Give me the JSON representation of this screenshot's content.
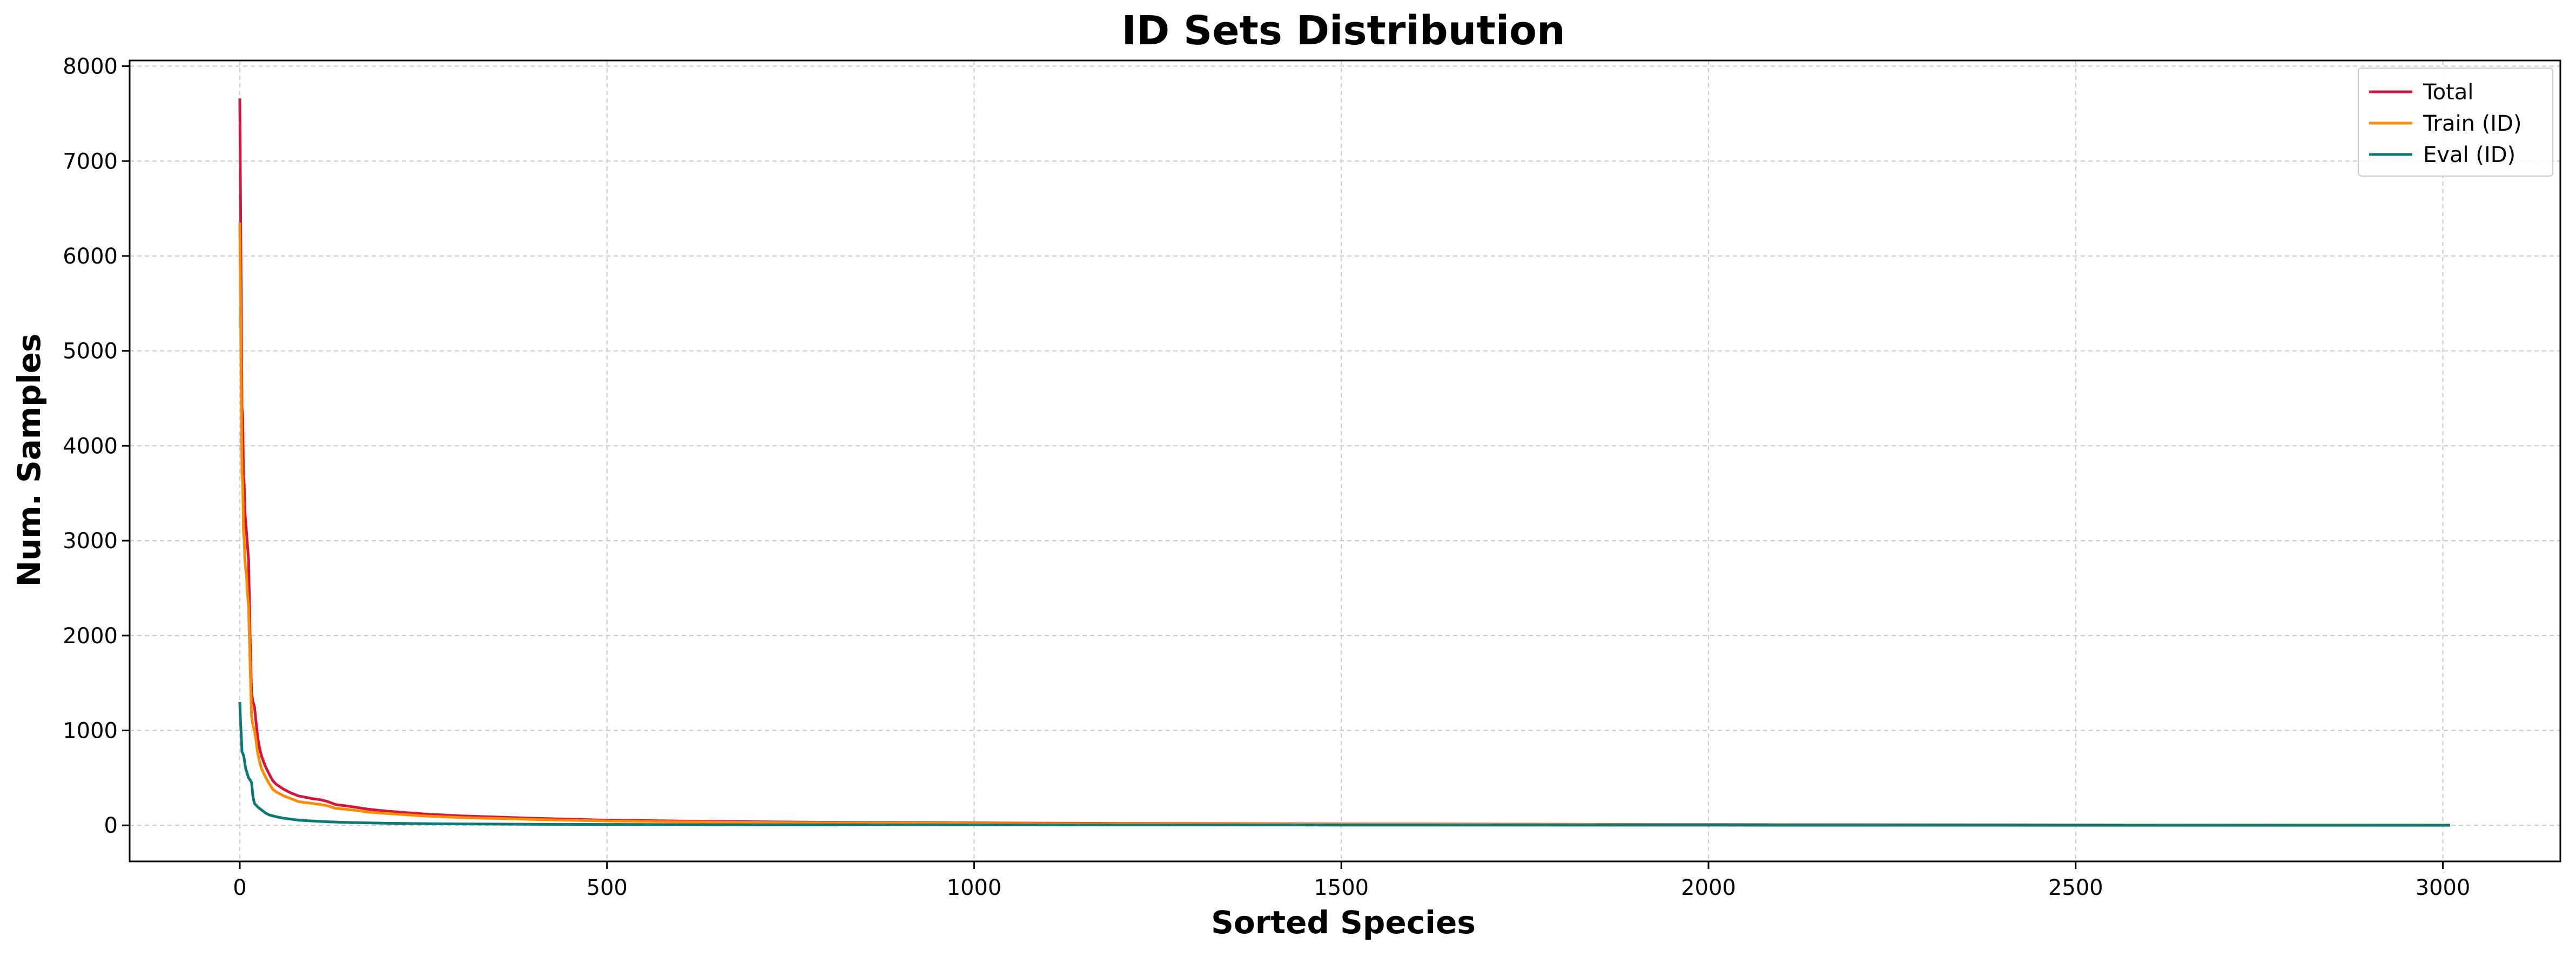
{
  "chart_data": {
    "type": "line",
    "title": "ID Sets Distribution",
    "xlabel": "Sorted Species",
    "ylabel": "Num. Samples",
    "xlim": [
      -150,
      3160
    ],
    "ylim": [
      -380,
      8060
    ],
    "xticks": [
      0,
      500,
      1000,
      1500,
      2000,
      2500,
      3000
    ],
    "xtick_labels": [
      "0",
      "500",
      "1000",
      "1500",
      "2000",
      "2500",
      "3000"
    ],
    "yticks": [
      0,
      1000,
      2000,
      3000,
      4000,
      5000,
      6000,
      7000,
      8000
    ],
    "ytick_labels": [
      "0",
      "1000",
      "2000",
      "3000",
      "4000",
      "5000",
      "6000",
      "7000",
      "8000"
    ],
    "grid": true,
    "legend_position": "top-right",
    "series": [
      {
        "name": "Total",
        "color": "#d7153a",
        "x": [
          0,
          1,
          2,
          3,
          4,
          5,
          6,
          7,
          8,
          9,
          10,
          12,
          14,
          16,
          18,
          20,
          22,
          24,
          26,
          28,
          30,
          35,
          40,
          45,
          50,
          60,
          70,
          80,
          90,
          100,
          110,
          120,
          130,
          150,
          175,
          200,
          250,
          300,
          400,
          500,
          600,
          700,
          800,
          1000,
          1200,
          1500,
          1800,
          2000,
          2500,
          3010
        ],
        "values": [
          7660,
          6600,
          5500,
          4400,
          4300,
          3700,
          3600,
          3300,
          3200,
          3100,
          3000,
          2800,
          2000,
          1400,
          1300,
          1250,
          1100,
          950,
          850,
          780,
          720,
          620,
          540,
          470,
          430,
          380,
          340,
          310,
          295,
          280,
          270,
          250,
          220,
          200,
          170,
          150,
          120,
          100,
          75,
          55,
          45,
          38,
          32,
          25,
          20,
          15,
          11,
          8,
          5,
          3
        ]
      },
      {
        "name": "Train (ID)",
        "color": "#ff8c00",
        "x": [
          0,
          1,
          2,
          3,
          4,
          5,
          6,
          7,
          8,
          9,
          10,
          12,
          14,
          16,
          18,
          20,
          22,
          24,
          26,
          28,
          30,
          35,
          40,
          45,
          50,
          60,
          70,
          80,
          90,
          100,
          110,
          120,
          130,
          150,
          175,
          200,
          250,
          300,
          400,
          500,
          600,
          700,
          800,
          1000,
          1200,
          1500,
          1800,
          2000,
          2500,
          3010
        ],
        "values": [
          6350,
          5500,
          4600,
          3700,
          3600,
          3100,
          3000,
          2800,
          2700,
          2650,
          2500,
          2300,
          1700,
          1150,
          1050,
          1000,
          900,
          780,
          700,
          640,
          590,
          510,
          440,
          380,
          350,
          310,
          280,
          250,
          240,
          230,
          220,
          205,
          180,
          165,
          140,
          125,
          100,
          82,
          62,
          45,
          37,
          31,
          26,
          20,
          16,
          12,
          9,
          6,
          4,
          2
        ]
      },
      {
        "name": "Eval (ID)",
        "color": "#0b7a75",
        "x": [
          0,
          1,
          2,
          3,
          4,
          5,
          6,
          8,
          10,
          12,
          14,
          16,
          18,
          20,
          25,
          30,
          35,
          40,
          50,
          60,
          70,
          80,
          100,
          120,
          150,
          200,
          250,
          300,
          400,
          500,
          700,
          1000,
          1500,
          2000,
          2500,
          3010
        ],
        "values": [
          1300,
          1100,
          950,
          780,
          760,
          740,
          700,
          600,
          550,
          500,
          480,
          450,
          300,
          230,
          190,
          160,
          130,
          110,
          90,
          75,
          65,
          55,
          45,
          38,
          30,
          22,
          18,
          15,
          11,
          9,
          6,
          4,
          3,
          2,
          1,
          1
        ]
      }
    ]
  }
}
